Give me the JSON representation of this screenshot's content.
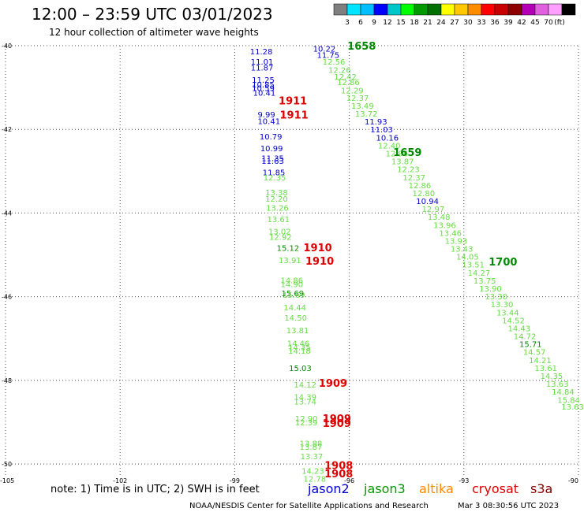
{
  "header": {
    "title": "12:00 – 23:59 UTC 03/01/2023",
    "subtitle": "12 hour collection of altimeter wave heights"
  },
  "colorbar": {
    "colors": [
      "#7f7f7f",
      "#00e5ff",
      "#00bfff",
      "#0000ff",
      "#00c8c8",
      "#00ff00",
      "#009a00",
      "#007000",
      "#ffff00",
      "#ffc800",
      "#ff8c00",
      "#ff0000",
      "#c80000",
      "#8c0000",
      "#b400b4",
      "#e060e0",
      "#ffa0ff",
      "#000000"
    ],
    "labels": [
      "3",
      "6",
      "9",
      "12",
      "15",
      "18",
      "21",
      "24",
      "27",
      "30",
      "33",
      "36",
      "39",
      "42",
      "45",
      "70",
      "(ft)"
    ]
  },
  "footer": {
    "note": "note:  1) Time is in UTC;  2) SWH is in feet",
    "missions": [
      {
        "name": "jason2",
        "color": "#0000cc"
      },
      {
        "name": "jason3",
        "color": "#009900"
      },
      {
        "name": "altika",
        "color": "#ff8800"
      },
      {
        "name": "cryosat",
        "color": "#dd0000"
      },
      {
        "name": "s3a",
        "color": "#880000"
      }
    ],
    "credit": "NOAA/NESDIS Center for Satellite Applications and Research",
    "timestamp": "Mar  3 08:30:56 UTC 2023"
  },
  "chart_data": {
    "type": "scatter",
    "title": "12:00 – 23:59 UTC 03/01/2023",
    "subtitle": "12 hour collection of altimeter wave heights",
    "xlabel": "",
    "ylabel": "",
    "xlim": [
      -105,
      -90
    ],
    "ylim": [
      -50.3,
      -40
    ],
    "x_ticks": [
      -105,
      -102,
      -99,
      -96,
      -93,
      -90
    ],
    "y_ticks": [
      -40,
      -42,
      -44,
      -46,
      -48,
      -50
    ],
    "grid": "dotted",
    "colors": {
      "blue": "#0000cc",
      "light": "#66dd44",
      "dark": "#008800",
      "red": "#dd0000"
    },
    "swh_points": [
      {
        "x": -98.6,
        "y": -40.13,
        "v": "11.28",
        "c": "blue"
      },
      {
        "x": -98.58,
        "y": -40.38,
        "v": "11.01",
        "c": "blue"
      },
      {
        "x": -98.58,
        "y": -40.52,
        "v": "11.87",
        "c": "blue"
      },
      {
        "x": -98.55,
        "y": -40.81,
        "v": "11.25",
        "c": "blue"
      },
      {
        "x": -98.55,
        "y": -40.92,
        "v": "10.85",
        "c": "blue"
      },
      {
        "x": -98.55,
        "y": -41.01,
        "v": "10.59",
        "c": "blue"
      },
      {
        "x": -98.52,
        "y": -41.12,
        "v": "10.41",
        "c": "blue"
      },
      {
        "x": -98.4,
        "y": -41.64,
        "v": "9.99",
        "c": "blue"
      },
      {
        "x": -98.4,
        "y": -41.8,
        "v": "10.41",
        "c": "blue"
      },
      {
        "x": -98.35,
        "y": -42.17,
        "v": "10.79",
        "c": "blue"
      },
      {
        "x": -98.33,
        "y": -42.45,
        "v": "10.99",
        "c": "blue"
      },
      {
        "x": -98.3,
        "y": -42.68,
        "v": "11.35",
        "c": "blue"
      },
      {
        "x": -98.3,
        "y": -42.75,
        "v": "11.63",
        "c": "blue"
      },
      {
        "x": -98.27,
        "y": -43.02,
        "v": "11.85",
        "c": "blue"
      },
      {
        "x": -98.25,
        "y": -43.14,
        "v": "12.35",
        "c": "light"
      },
      {
        "x": -98.2,
        "y": -43.5,
        "v": "13.38",
        "c": "light"
      },
      {
        "x": -98.2,
        "y": -43.65,
        "v": "12.20",
        "c": "light"
      },
      {
        "x": -98.18,
        "y": -43.87,
        "v": "13.26",
        "c": "light"
      },
      {
        "x": -98.15,
        "y": -44.14,
        "v": "13.61",
        "c": "light"
      },
      {
        "x": -98.12,
        "y": -44.43,
        "v": "13.02",
        "c": "light"
      },
      {
        "x": -98.1,
        "y": -44.57,
        "v": "12.92",
        "c": "light"
      },
      {
        "x": -97.9,
        "y": -44.83,
        "v": "15.12",
        "c": "dark"
      },
      {
        "x": -97.85,
        "y": -45.12,
        "v": "13.91",
        "c": "light"
      },
      {
        "x": -97.8,
        "y": -45.6,
        "v": "14.86",
        "c": "light"
      },
      {
        "x": -97.8,
        "y": -45.7,
        "v": "14.90",
        "c": "light"
      },
      {
        "x": -97.78,
        "y": -45.91,
        "v": "15.69",
        "c": "dark"
      },
      {
        "x": -97.75,
        "y": -45.95,
        "v": "15.69",
        "c": "light"
      },
      {
        "x": -97.72,
        "y": -46.25,
        "v": "14.44",
        "c": "light"
      },
      {
        "x": -97.7,
        "y": -46.5,
        "v": "14.50",
        "c": "light"
      },
      {
        "x": -97.65,
        "y": -46.8,
        "v": "13.81",
        "c": "light"
      },
      {
        "x": -97.63,
        "y": -47.11,
        "v": "14.46",
        "c": "light"
      },
      {
        "x": -97.6,
        "y": -47.2,
        "v": "14.35",
        "c": "light"
      },
      {
        "x": -97.6,
        "y": -47.29,
        "v": "14.18",
        "c": "light"
      },
      {
        "x": -97.58,
        "y": -47.7,
        "v": "15.03",
        "c": "dark"
      },
      {
        "x": -97.45,
        "y": -48.1,
        "v": "14.12",
        "c": "light"
      },
      {
        "x": -97.45,
        "y": -48.39,
        "v": "14.39",
        "c": "light"
      },
      {
        "x": -97.45,
        "y": -48.5,
        "v": "13.74",
        "c": "light"
      },
      {
        "x": -97.42,
        "y": -48.91,
        "v": "12.90",
        "c": "light"
      },
      {
        "x": -97.42,
        "y": -49.0,
        "v": "12.39",
        "c": "light"
      },
      {
        "x": -97.3,
        "y": -49.5,
        "v": "13.88",
        "c": "light"
      },
      {
        "x": -97.3,
        "y": -49.58,
        "v": "13.87",
        "c": "light"
      },
      {
        "x": -97.28,
        "y": -49.81,
        "v": "13.37",
        "c": "light"
      },
      {
        "x": -97.25,
        "y": -50.16,
        "v": "14.23",
        "c": "light"
      },
      {
        "x": -97.2,
        "y": -50.35,
        "v": "12.78",
        "c": "light"
      },
      {
        "x": -96.95,
        "y": -40.07,
        "v": "10.22",
        "c": "blue"
      },
      {
        "x": -96.85,
        "y": -40.22,
        "v": "11.75",
        "c": "blue"
      },
      {
        "x": -96.7,
        "y": -40.38,
        "v": "12.56",
        "c": "light"
      },
      {
        "x": -96.55,
        "y": -40.57,
        "v": "12.26",
        "c": "light"
      },
      {
        "x": -96.4,
        "y": -40.73,
        "v": "12.42",
        "c": "light"
      },
      {
        "x": -96.32,
        "y": -40.87,
        "v": "12.86",
        "c": "light"
      },
      {
        "x": -96.22,
        "y": -41.06,
        "v": "12.29",
        "c": "light"
      },
      {
        "x": -96.08,
        "y": -41.24,
        "v": "12.37",
        "c": "light"
      },
      {
        "x": -95.95,
        "y": -41.43,
        "v": "13.49",
        "c": "light"
      },
      {
        "x": -95.85,
        "y": -41.62,
        "v": "13.72",
        "c": "light"
      },
      {
        "x": -95.6,
        "y": -41.81,
        "v": "11.93",
        "c": "blue"
      },
      {
        "x": -95.45,
        "y": -42.0,
        "v": "11.03",
        "c": "blue"
      },
      {
        "x": -95.3,
        "y": -42.19,
        "v": "10.16",
        "c": "blue"
      },
      {
        "x": -95.25,
        "y": -42.38,
        "v": "12.40",
        "c": "light"
      },
      {
        "x": -95.05,
        "y": -42.57,
        "v": "12.96",
        "c": "light"
      },
      {
        "x": -94.9,
        "y": -42.76,
        "v": "13.87",
        "c": "light"
      },
      {
        "x": -94.75,
        "y": -42.95,
        "v": "12.23",
        "c": "light"
      },
      {
        "x": -94.6,
        "y": -43.14,
        "v": "12.37",
        "c": "light"
      },
      {
        "x": -94.45,
        "y": -43.33,
        "v": "12.86",
        "c": "light"
      },
      {
        "x": -94.35,
        "y": -43.52,
        "v": "12.80",
        "c": "light"
      },
      {
        "x": -94.25,
        "y": -43.71,
        "v": "10.94",
        "c": "blue"
      },
      {
        "x": -94.1,
        "y": -43.9,
        "v": "12.97",
        "c": "light"
      },
      {
        "x": -93.95,
        "y": -44.09,
        "v": "13.48",
        "c": "light"
      },
      {
        "x": -93.8,
        "y": -44.28,
        "v": "13.96",
        "c": "light"
      },
      {
        "x": -93.65,
        "y": -44.47,
        "v": "13.46",
        "c": "light"
      },
      {
        "x": -93.5,
        "y": -44.66,
        "v": "13.93",
        "c": "light"
      },
      {
        "x": -93.35,
        "y": -44.85,
        "v": "13.43",
        "c": "light"
      },
      {
        "x": -93.2,
        "y": -45.04,
        "v": "14.05",
        "c": "light"
      },
      {
        "x": -93.05,
        "y": -45.23,
        "v": "13.51",
        "c": "light"
      },
      {
        "x": -92.9,
        "y": -45.42,
        "v": "14.27",
        "c": "light"
      },
      {
        "x": -92.75,
        "y": -45.61,
        "v": "13.75",
        "c": "light"
      },
      {
        "x": -92.6,
        "y": -45.8,
        "v": "13.90",
        "c": "light"
      },
      {
        "x": -92.45,
        "y": -45.99,
        "v": "13.30",
        "c": "light"
      },
      {
        "x": -92.3,
        "y": -46.18,
        "v": "13.30",
        "c": "light"
      },
      {
        "x": -92.15,
        "y": -46.37,
        "v": "13.44",
        "c": "light"
      },
      {
        "x": -92.0,
        "y": -46.56,
        "v": "14.52",
        "c": "light"
      },
      {
        "x": -91.85,
        "y": -46.75,
        "v": "14.43",
        "c": "light"
      },
      {
        "x": -91.7,
        "y": -46.94,
        "v": "14.72",
        "c": "light"
      },
      {
        "x": -91.55,
        "y": -47.13,
        "v": "15.71",
        "c": "dark"
      },
      {
        "x": -91.45,
        "y": -47.32,
        "v": "14.57",
        "c": "light"
      },
      {
        "x": -91.3,
        "y": -47.51,
        "v": "14.21",
        "c": "light"
      },
      {
        "x": -91.15,
        "y": -47.7,
        "v": "13.61",
        "c": "light"
      },
      {
        "x": -91.0,
        "y": -47.89,
        "v": "14.35",
        "c": "light"
      },
      {
        "x": -90.85,
        "y": -48.08,
        "v": "13.63",
        "c": "light"
      },
      {
        "x": -90.7,
        "y": -48.27,
        "v": "14.84",
        "c": "light"
      },
      {
        "x": -90.55,
        "y": -48.46,
        "v": "15.84",
        "c": "light"
      },
      {
        "x": -90.45,
        "y": -48.62,
        "v": "13.63",
        "c": "light"
      }
    ],
    "time_labels": [
      {
        "x": -96.05,
        "y": -40.0,
        "v": "1658",
        "c": "dark"
      },
      {
        "x": -97.85,
        "y": -41.31,
        "v": "1911",
        "c": "red"
      },
      {
        "x": -97.82,
        "y": -41.65,
        "v": "1911",
        "c": "red"
      },
      {
        "x": -94.85,
        "y": -42.54,
        "v": "1659",
        "c": "dark"
      },
      {
        "x": -97.2,
        "y": -44.82,
        "v": "1910",
        "c": "red"
      },
      {
        "x": -97.15,
        "y": -45.14,
        "v": "1910",
        "c": "red"
      },
      {
        "x": -92.35,
        "y": -45.16,
        "v": "1700",
        "c": "dark"
      },
      {
        "x": -96.8,
        "y": -48.06,
        "v": "1909",
        "c": "red"
      },
      {
        "x": -96.7,
        "y": -48.91,
        "v": "1909",
        "c": "red"
      },
      {
        "x": -96.7,
        "y": -49.02,
        "v": "1909",
        "c": "red"
      },
      {
        "x": -96.65,
        "y": -50.03,
        "v": "1908",
        "c": "red"
      },
      {
        "x": -96.65,
        "y": -50.22,
        "v": "1908",
        "c": "red"
      }
    ]
  }
}
